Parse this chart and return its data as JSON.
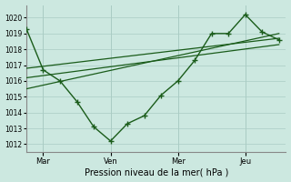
{
  "bg_color": "#cce8e0",
  "grid_color": "#aaccc4",
  "line_color": "#1a5c1a",
  "xlabel": "Pression niveau de la mer( hPa )",
  "ylim": [
    1011.5,
    1020.8
  ],
  "yticks": [
    1012,
    1013,
    1014,
    1015,
    1016,
    1017,
    1018,
    1019,
    1020
  ],
  "x_ticks_labels": [
    "Mar",
    "Ven",
    "Mer",
    "Jeu"
  ],
  "x_ticks_pos": [
    12,
    60,
    108,
    156
  ],
  "x_vlines": [
    12,
    60,
    108,
    156
  ],
  "xlim": [
    0,
    185
  ],
  "series1_x": [
    0,
    12,
    24,
    36,
    48,
    60,
    72,
    84,
    96,
    108,
    120,
    132,
    144,
    156,
    168,
    180
  ],
  "series1_y": [
    1019.3,
    1016.7,
    1016.0,
    1014.7,
    1013.1,
    1012.2,
    1013.3,
    1013.8,
    1015.1,
    1016.0,
    1017.3,
    1019.0,
    1019.0,
    1020.2,
    1019.1,
    1018.6
  ],
  "series2_x": [
    0,
    180
  ],
  "series2_y": [
    1016.8,
    1018.7
  ],
  "series3_x": [
    0,
    180
  ],
  "series3_y": [
    1016.2,
    1018.3
  ],
  "series4_x": [
    0,
    180
  ],
  "series4_y": [
    1015.5,
    1019.0
  ]
}
